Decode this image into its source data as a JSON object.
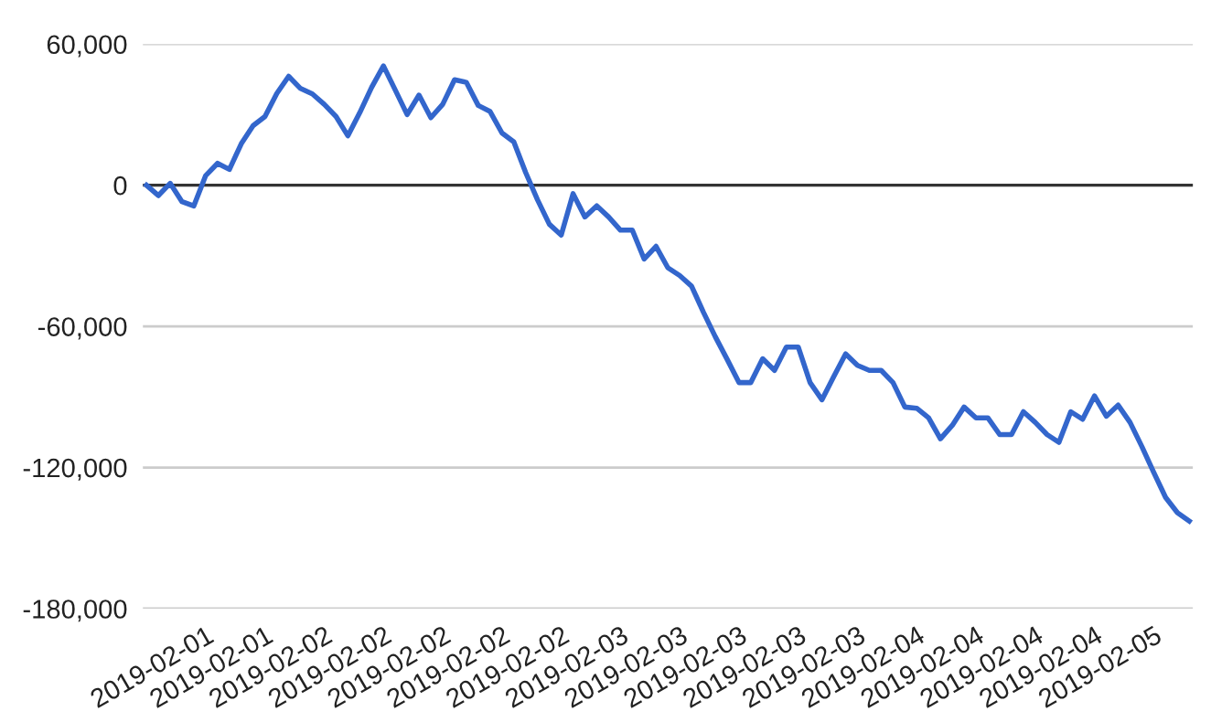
{
  "chart_data": {
    "type": "line",
    "categories": [
      null,
      null,
      null,
      null,
      null,
      "2019-02-01",
      null,
      null,
      null,
      null,
      "2019-02-01",
      null,
      null,
      null,
      null,
      "2019-02-02",
      null,
      null,
      null,
      null,
      "2019-02-02",
      null,
      null,
      null,
      null,
      "2019-02-02",
      null,
      null,
      null,
      null,
      "2019-02-02",
      null,
      null,
      null,
      null,
      "2019-02-02",
      null,
      null,
      null,
      null,
      "2019-02-03",
      null,
      null,
      null,
      null,
      "2019-02-03",
      null,
      null,
      null,
      null,
      "2019-02-03",
      null,
      null,
      null,
      null,
      "2019-02-03",
      null,
      null,
      null,
      null,
      "2019-02-03",
      null,
      null,
      null,
      null,
      "2019-02-04",
      null,
      null,
      null,
      null,
      "2019-02-04",
      null,
      null,
      null,
      null,
      "2019-02-04",
      null,
      null,
      null,
      null,
      "2019-02-04",
      null,
      null,
      null,
      null,
      "2019-02-05",
      null,
      null,
      null
    ],
    "series": [
      {
        "color": "#3366cc",
        "values": [
          0,
          -4400,
          800,
          -7000,
          -8800,
          4100,
          9300,
          6700,
          17600,
          25300,
          29200,
          39000,
          46300,
          41100,
          38800,
          34400,
          29200,
          21000,
          30800,
          41600,
          50700,
          40400,
          30000,
          38300,
          28700,
          34400,
          44800,
          43700,
          33900,
          31300,
          22200,
          18400,
          5400,
          -6200,
          -16600,
          -21200,
          -3600,
          -13500,
          -8800,
          -13500,
          -19100,
          -19100,
          -31400,
          -26000,
          -35100,
          -38400,
          -42900,
          -54000,
          -64400,
          -74000,
          -83900,
          -83900,
          -73800,
          -78700,
          -68800,
          -68800,
          -83900,
          -91200,
          -81300,
          -71700,
          -76600,
          -78700,
          -78700,
          -83900,
          -94300,
          -94800,
          -98900,
          -107800,
          -102100,
          -94300,
          -98900,
          -98900,
          -106000,
          -106000,
          -96300,
          -100800,
          -106000,
          -109300,
          -96300,
          -99500,
          -89600,
          -98200,
          -93500,
          -100800,
          -111100,
          -122100,
          -132700,
          -139200,
          -142800
        ]
      }
    ],
    "ylim": [
      -180000,
      60000
    ],
    "yticks": [
      {
        "value": -180000,
        "label": "-180,000"
      },
      {
        "value": -120000,
        "label": "-120,000"
      },
      {
        "value": -60000,
        "label": "-60,000"
      },
      {
        "value": 0,
        "label": "0"
      },
      {
        "value": 60000,
        "label": "60,000"
      }
    ],
    "ref_lines": [
      {
        "axis": "y",
        "value": 0,
        "color": "#333333"
      }
    ],
    "grid": "y",
    "marker": "none",
    "line_style": "solid"
  }
}
